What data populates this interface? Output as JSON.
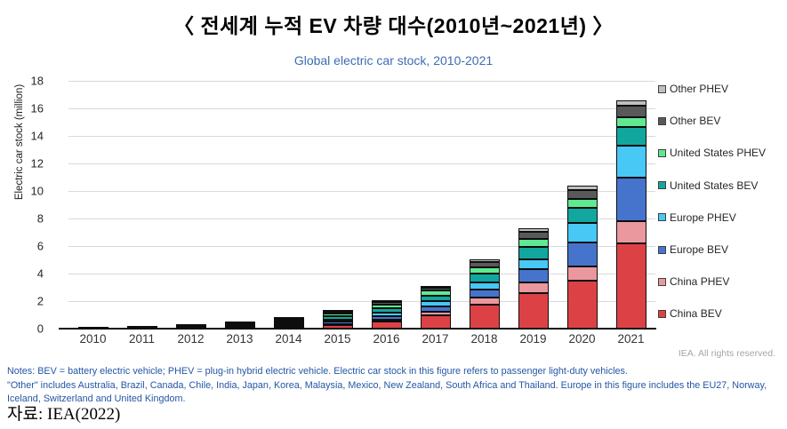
{
  "title": "〈 전세계 누적 EV 차량 대수(2010년~2021년) 〉",
  "chart": {
    "subtitle": "Global electric car stock, 2010-2021",
    "ylabel": "Electric car stock (million)",
    "copyright": "IEA. All rights reserved."
  },
  "notes": {
    "line1": "Notes: BEV = battery electric vehicle; PHEV = plug-in hybrid electric vehicle. Electric car stock in this figure refers to passenger light-duty vehicles.",
    "line2": "\"Other\" includes Australia, Brazil, Canada, Chile, India, Japan, Korea, Malaysia, Mexico, New Zealand, South Africa and Thailand. Europe in this figure includes the EU27, Norway, Iceland, Switzerland and United Kingdom."
  },
  "source": "자료: IEA(2022)",
  "chart_data": {
    "type": "bar",
    "stacked": true,
    "title": "Global electric car stock, 2010-2021",
    "xlabel": "",
    "ylabel": "Electric car stock (million)",
    "ylim": [
      0,
      18
    ],
    "ytick_step": 2,
    "grid": true,
    "legend_position": "right",
    "categories": [
      "2010",
      "2011",
      "2012",
      "2013",
      "2014",
      "2015",
      "2016",
      "2017",
      "2018",
      "2019",
      "2020",
      "2021"
    ],
    "series": [
      {
        "name": "China BEV",
        "color": "#dc4245",
        "values": [
          0.0,
          0.01,
          0.02,
          0.03,
          0.08,
          0.23,
          0.49,
          0.95,
          1.76,
          2.58,
          3.5,
          6.21
        ]
      },
      {
        "name": "China PHEV",
        "color": "#ea989d",
        "values": [
          0.0,
          0.0,
          0.0,
          0.01,
          0.03,
          0.09,
          0.17,
          0.28,
          0.48,
          0.76,
          1.0,
          1.6
        ]
      },
      {
        "name": "Europe BEV",
        "color": "#4674cd",
        "values": [
          0.0,
          0.01,
          0.03,
          0.06,
          0.11,
          0.19,
          0.27,
          0.38,
          0.58,
          0.97,
          1.76,
          3.16
        ]
      },
      {
        "name": "Europe PHEV",
        "color": "#47c8f5",
        "values": [
          0.0,
          0.0,
          0.01,
          0.03,
          0.08,
          0.16,
          0.24,
          0.37,
          0.55,
          0.75,
          1.43,
          2.33
        ]
      },
      {
        "name": "United States BEV",
        "color": "#12a79e",
        "values": [
          0.0,
          0.01,
          0.03,
          0.08,
          0.14,
          0.21,
          0.3,
          0.41,
          0.64,
          0.88,
          1.1,
          1.35
        ]
      },
      {
        "name": "United States PHEV",
        "color": "#5fe992",
        "values": [
          0.0,
          0.01,
          0.04,
          0.09,
          0.15,
          0.19,
          0.26,
          0.36,
          0.47,
          0.57,
          0.63,
          0.69
        ]
      },
      {
        "name": "Other BEV",
        "color": "#595959",
        "values": [
          0.01,
          0.02,
          0.04,
          0.06,
          0.09,
          0.13,
          0.18,
          0.25,
          0.37,
          0.51,
          0.64,
          0.86
        ]
      },
      {
        "name": "Other PHEV",
        "color": "#bfbfbf",
        "values": [
          0.0,
          0.0,
          0.01,
          0.02,
          0.03,
          0.06,
          0.08,
          0.1,
          0.17,
          0.24,
          0.3,
          0.41
        ]
      }
    ]
  }
}
